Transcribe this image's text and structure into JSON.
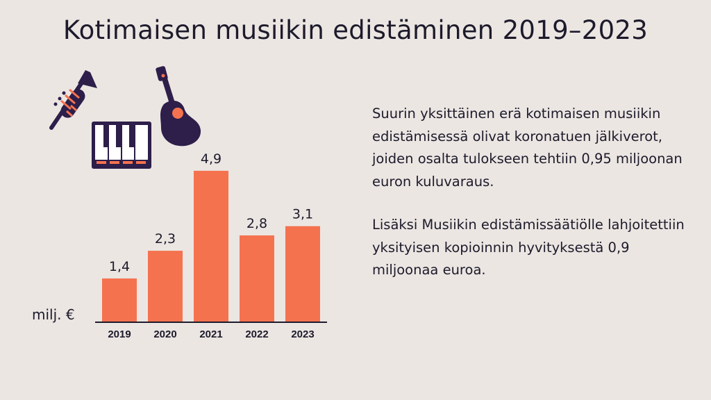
{
  "title": "Kotimaisen musiikin edistäminen 2019–2023",
  "paragraphs": [
    "Suurin yksittäinen erä kotimaisen musiikin edistämisessä olivat koronatuen jälkiverot, joiden osalta tulokseen tehtiin 0,95 miljoonan euron kuluvaraus.",
    "Lisäksi Musiikin edistämissäätiölle lahjoitettiin yksityisen kopioinnin hyvityksestä 0,9 miljoonaa euroa."
  ],
  "icons": [
    "trumpet-icon",
    "guitar-icon",
    "piano-keyboard-icon"
  ],
  "chart_data": {
    "type": "bar",
    "categories": [
      "2019",
      "2020",
      "2021",
      "2022",
      "2023"
    ],
    "values": [
      1.4,
      2.3,
      4.9,
      2.8,
      3.1
    ],
    "value_labels": [
      "1,4",
      "2,3",
      "4,9",
      "2,8",
      "3,1"
    ],
    "ylabel": "milj. €",
    "ylim": [
      0,
      5.0
    ],
    "grid": false,
    "bar_color": "#f5724f"
  },
  "colors": {
    "background": "#ebe6e2",
    "accent": "#f5724f",
    "dark": "#2d1e4a"
  }
}
